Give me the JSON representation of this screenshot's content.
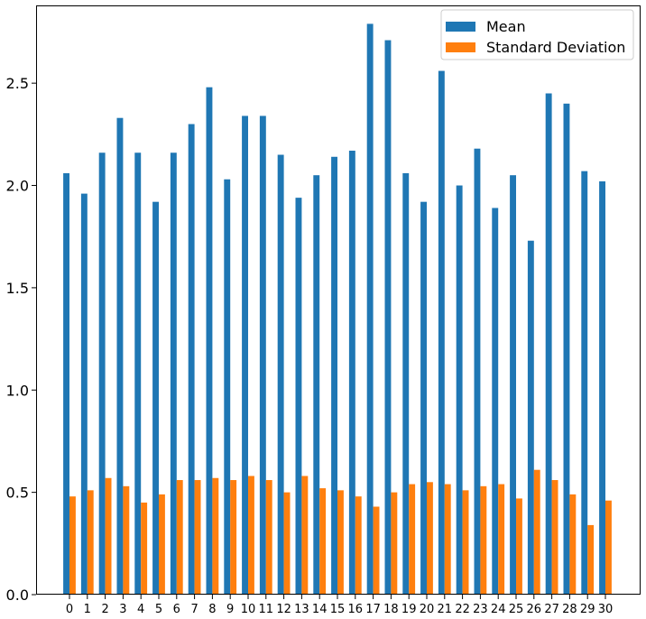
{
  "chart_data": {
    "type": "bar",
    "title": "",
    "xlabel": "",
    "ylabel": "",
    "categories": [
      "0",
      "1",
      "2",
      "3",
      "4",
      "5",
      "6",
      "7",
      "8",
      "9",
      "10",
      "11",
      "12",
      "13",
      "14",
      "15",
      "16",
      "17",
      "18",
      "19",
      "20",
      "21",
      "22",
      "23",
      "24",
      "25",
      "26",
      "27",
      "28",
      "29",
      "30"
    ],
    "series": [
      {
        "name": "Mean",
        "color": "#1f77b4",
        "values": [
          2.06,
          1.96,
          2.16,
          2.33,
          2.16,
          1.92,
          2.16,
          2.3,
          2.48,
          2.03,
          2.34,
          2.34,
          2.15,
          1.94,
          2.05,
          2.14,
          2.17,
          2.79,
          2.71,
          2.06,
          1.92,
          2.56,
          2.0,
          2.18,
          1.89,
          2.05,
          1.73,
          2.45,
          2.4,
          2.07,
          2.02
        ]
      },
      {
        "name": "Standard Deviation",
        "color": "#ff7f0e",
        "values": [
          0.48,
          0.51,
          0.57,
          0.53,
          0.45,
          0.49,
          0.56,
          0.56,
          0.57,
          0.56,
          0.58,
          0.56,
          0.5,
          0.58,
          0.52,
          0.51,
          0.48,
          0.43,
          0.5,
          0.54,
          0.55,
          0.54,
          0.51,
          0.53,
          0.54,
          0.47,
          0.61,
          0.56,
          0.49,
          0.34,
          0.46
        ]
      }
    ],
    "ylim": [
      0,
      2.88
    ],
    "yticks": [
      0.0,
      0.5,
      1.0,
      1.5,
      2.0,
      2.5
    ],
    "ytick_labels": [
      "0.0",
      "0.5",
      "1.0",
      "1.5",
      "2.0",
      "2.5"
    ],
    "grid": false,
    "legend_position": "top-right"
  }
}
